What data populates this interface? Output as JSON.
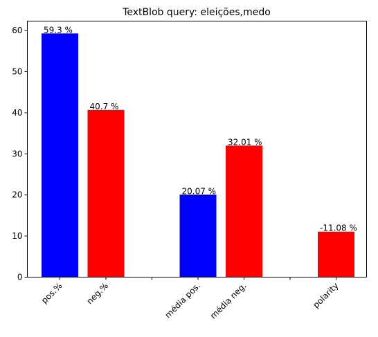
{
  "chart_data": {
    "type": "bar",
    "title": "TextBlob query: eleições,medo",
    "xlabel": "",
    "ylabel": "",
    "ylim": [
      0,
      62.3
    ],
    "yticks": [
      0,
      10,
      20,
      30,
      40,
      50,
      60
    ],
    "categories": [
      "pos.%",
      "neg.%",
      "",
      "média pos.",
      "média neg.",
      "",
      "polarity"
    ],
    "values": [
      59.3,
      40.7,
      null,
      20.07,
      32.01,
      null,
      11.08
    ],
    "data_labels": [
      "59.3 %",
      "40.7 %",
      "",
      "20.07 %",
      "32.01 %",
      "",
      "-11.08 %"
    ],
    "bar_colors": [
      "#0000ff",
      "#ff0000",
      null,
      "#0000ff",
      "#ff0000",
      null,
      "#ff0000"
    ],
    "grid": false,
    "legend": "none"
  }
}
